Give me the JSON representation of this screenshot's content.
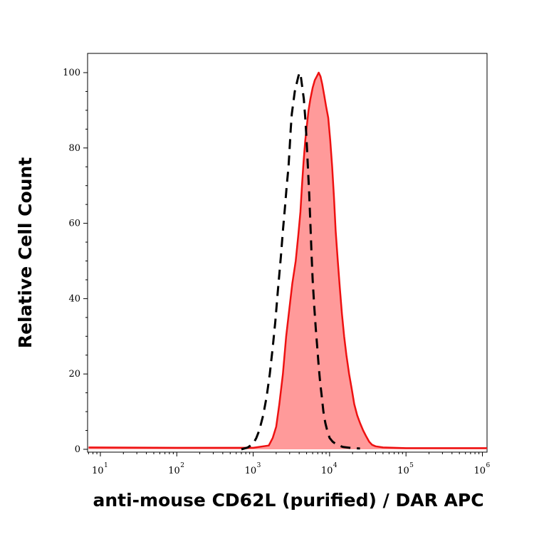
{
  "chart_data": {
    "type": "area",
    "xlabel": "anti-mouse CD62L (purified) / DAR APC",
    "ylabel": "Relative Cell Count",
    "xscale": "log",
    "xlim": [
      6.8,
      1150000
    ],
    "ylim": [
      0,
      100
    ],
    "grid": false,
    "legend": "none",
    "yticks": [
      0,
      20,
      40,
      60,
      80,
      100
    ],
    "xticks": [
      {
        "base": "10",
        "exp": "1",
        "value": 10
      },
      {
        "base": "10",
        "exp": "2",
        "value": 100
      },
      {
        "base": "10",
        "exp": "3",
        "value": 1000
      },
      {
        "base": "10",
        "exp": "4",
        "value": 10000
      },
      {
        "base": "10",
        "exp": "5",
        "value": 100000
      },
      {
        "base": "10",
        "exp": "6",
        "value": 1000000
      }
    ],
    "series": [
      {
        "style": "filled",
        "line_color": "#ee1111",
        "fill_color": "#ff9a9a",
        "points": [
          [
            7,
            0.5
          ],
          [
            100,
            0.4
          ],
          [
            1000,
            0.4
          ],
          [
            1600,
            1
          ],
          [
            1800,
            3
          ],
          [
            2000,
            6
          ],
          [
            2200,
            12
          ],
          [
            2450,
            20
          ],
          [
            2700,
            30
          ],
          [
            3000,
            38
          ],
          [
            3250,
            44
          ],
          [
            3600,
            50
          ],
          [
            3900,
            57
          ],
          [
            4150,
            63
          ],
          [
            4350,
            70
          ],
          [
            4550,
            76
          ],
          [
            4800,
            82
          ],
          [
            5050,
            86
          ],
          [
            5300,
            90
          ],
          [
            5600,
            93
          ],
          [
            6000,
            96
          ],
          [
            6400,
            98
          ],
          [
            6800,
            99
          ],
          [
            7200,
            100
          ],
          [
            7600,
            99
          ],
          [
            8000,
            97
          ],
          [
            8500,
            94
          ],
          [
            9000,
            91
          ],
          [
            9600,
            88
          ],
          [
            10200,
            82
          ],
          [
            10800,
            75
          ],
          [
            11400,
            67
          ],
          [
            12000,
            58
          ],
          [
            12800,
            50
          ],
          [
            13600,
            43
          ],
          [
            14500,
            36
          ],
          [
            15500,
            30
          ],
          [
            16600,
            25
          ],
          [
            18000,
            20
          ],
          [
            19500,
            16
          ],
          [
            21000,
            12
          ],
          [
            23000,
            9
          ],
          [
            25000,
            7
          ],
          [
            27500,
            5
          ],
          [
            30000,
            3.5
          ],
          [
            33000,
            2
          ],
          [
            36000,
            1.2
          ],
          [
            40000,
            0.8
          ],
          [
            50000,
            0.5
          ],
          [
            100000,
            0.3
          ],
          [
            1000000,
            0.3
          ],
          [
            1150000,
            0.3
          ]
        ]
      },
      {
        "style": "dashed",
        "line_color": "#000000",
        "points": [
          [
            700,
            0
          ],
          [
            850,
            0.5
          ],
          [
            1000,
            1.5
          ],
          [
            1100,
            3
          ],
          [
            1200,
            5
          ],
          [
            1350,
            9
          ],
          [
            1500,
            14
          ],
          [
            1650,
            20
          ],
          [
            1800,
            27
          ],
          [
            1950,
            34
          ],
          [
            2100,
            42
          ],
          [
            2300,
            51
          ],
          [
            2450,
            58
          ],
          [
            2600,
            64
          ],
          [
            2750,
            70
          ],
          [
            2900,
            75
          ],
          [
            3000,
            80
          ],
          [
            3100,
            85
          ],
          [
            3200,
            89
          ],
          [
            3350,
            92
          ],
          [
            3500,
            95
          ],
          [
            3700,
            97
          ],
          [
            3900,
            99
          ],
          [
            4050,
            100
          ],
          [
            4200,
            99
          ],
          [
            4400,
            96
          ],
          [
            4600,
            93
          ],
          [
            4800,
            88
          ],
          [
            5000,
            82
          ],
          [
            5200,
            75
          ],
          [
            5400,
            68
          ],
          [
            5600,
            60
          ],
          [
            5800,
            52
          ],
          [
            6000,
            45
          ],
          [
            6300,
            38
          ],
          [
            6600,
            32
          ],
          [
            6900,
            27
          ],
          [
            7200,
            22
          ],
          [
            7500,
            18
          ],
          [
            7900,
            14
          ],
          [
            8300,
            10
          ],
          [
            8800,
            7
          ],
          [
            9300,
            5
          ],
          [
            10000,
            3
          ],
          [
            11000,
            2
          ],
          [
            12500,
            1.2
          ],
          [
            15000,
            0.6
          ],
          [
            20000,
            0.3
          ],
          [
            25000,
            0.2
          ]
        ]
      }
    ]
  }
}
